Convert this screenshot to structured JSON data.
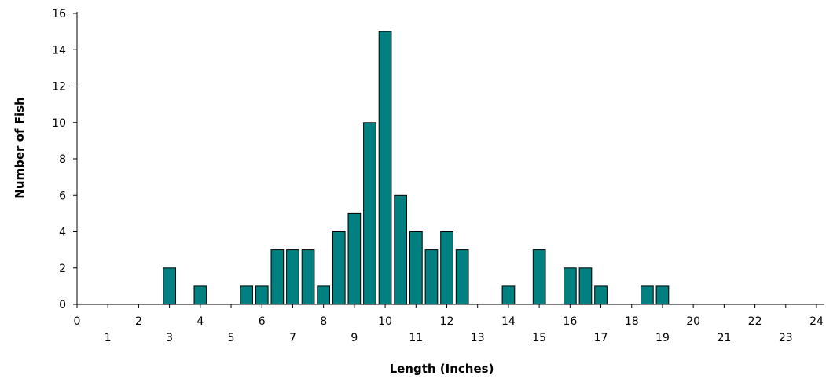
{
  "chart_data": {
    "type": "bar",
    "title": "",
    "xlabel": "Length (Inches)",
    "ylabel": "Number of Fish",
    "xlim": [
      0,
      24
    ],
    "ylim": [
      0,
      16
    ],
    "x_ticks": [
      0,
      1,
      2,
      3,
      4,
      5,
      6,
      7,
      8,
      9,
      10,
      11,
      12,
      13,
      14,
      15,
      16,
      17,
      18,
      19,
      20,
      21,
      22,
      23,
      24
    ],
    "y_ticks": [
      0,
      2,
      4,
      6,
      8,
      10,
      12,
      14,
      16
    ],
    "bar_width": 0.4,
    "grid": false,
    "legend": "none",
    "bar_color": "#008080",
    "points": [
      {
        "x": 3,
        "y": 2
      },
      {
        "x": 4,
        "y": 1
      },
      {
        "x": 5.5,
        "y": 1
      },
      {
        "x": 6,
        "y": 1
      },
      {
        "x": 6.5,
        "y": 3
      },
      {
        "x": 7,
        "y": 3
      },
      {
        "x": 7.5,
        "y": 3
      },
      {
        "x": 8,
        "y": 1
      },
      {
        "x": 8.5,
        "y": 4
      },
      {
        "x": 9,
        "y": 5
      },
      {
        "x": 9.5,
        "y": 10
      },
      {
        "x": 10,
        "y": 15
      },
      {
        "x": 10.5,
        "y": 6
      },
      {
        "x": 11,
        "y": 4
      },
      {
        "x": 11.5,
        "y": 3
      },
      {
        "x": 12,
        "y": 4
      },
      {
        "x": 12.5,
        "y": 3
      },
      {
        "x": 14,
        "y": 1
      },
      {
        "x": 15,
        "y": 3
      },
      {
        "x": 16,
        "y": 2
      },
      {
        "x": 16.5,
        "y": 2
      },
      {
        "x": 17,
        "y": 1
      },
      {
        "x": 18.5,
        "y": 1
      },
      {
        "x": 19,
        "y": 1
      }
    ]
  }
}
